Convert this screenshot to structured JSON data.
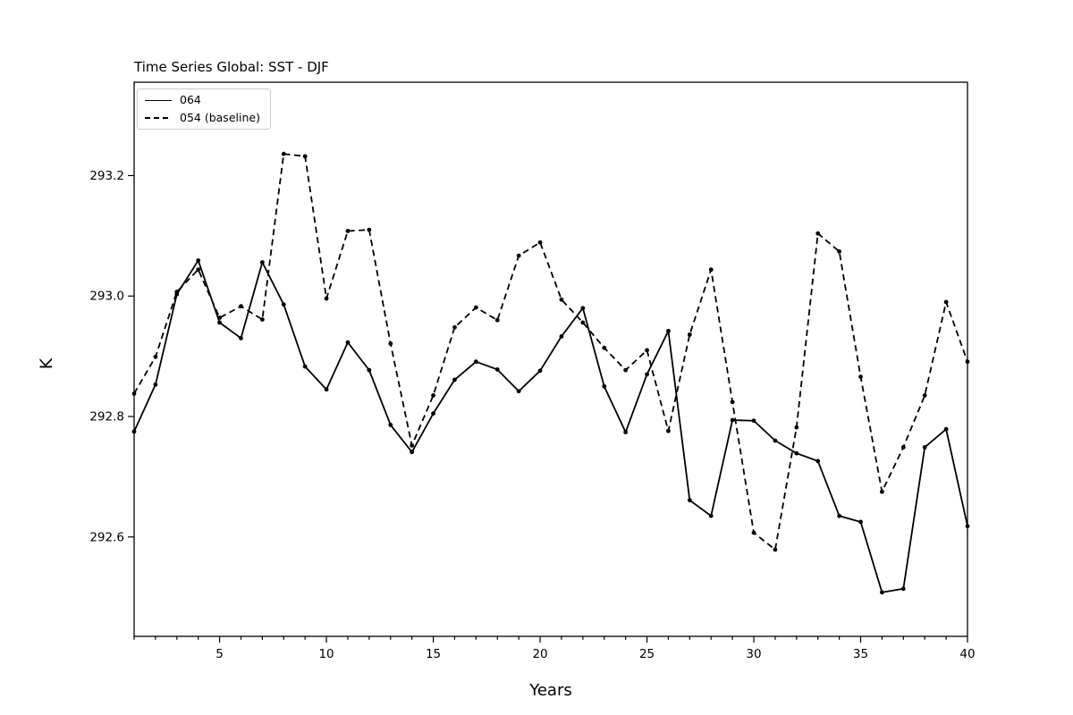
{
  "title": "Time Series Global: SST - DJF",
  "xlabel": "Years",
  "ylabel": "K",
  "legend": {
    "entries": [
      {
        "label": "064",
        "style": "solid"
      },
      {
        "label": "054 (baseline)",
        "style": "dashed"
      }
    ]
  },
  "colors": {
    "line": "#000000",
    "legend_border": "#cccccc",
    "background": "#ffffff"
  },
  "chart_data": {
    "type": "line",
    "title": "Time Series Global: SST - DJF",
    "xlabel": "Years",
    "ylabel": "K",
    "x": [
      1,
      2,
      3,
      4,
      5,
      6,
      7,
      8,
      9,
      10,
      11,
      12,
      13,
      14,
      15,
      16,
      17,
      18,
      19,
      20,
      21,
      22,
      23,
      24,
      25,
      26,
      27,
      28,
      29,
      30,
      31,
      32,
      33,
      34,
      35,
      36,
      37,
      38,
      39,
      40
    ],
    "series": [
      {
        "name": "064",
        "linestyle": "solid",
        "marker": "point",
        "values": [
          292.775,
          292.853,
          293.003,
          293.059,
          292.956,
          292.93,
          293.056,
          292.986,
          292.883,
          292.845,
          292.923,
          292.877,
          292.786,
          292.741,
          292.805,
          292.861,
          292.891,
          292.878,
          292.842,
          292.876,
          292.933,
          292.98,
          292.85,
          292.774,
          292.87,
          292.942,
          292.661,
          292.635,
          292.794,
          292.793,
          292.76,
          292.739,
          292.726,
          292.635,
          292.625,
          292.508,
          292.514,
          292.749,
          292.779,
          292.618
        ]
      },
      {
        "name": "054 (baseline)",
        "linestyle": "dashed",
        "marker": "point",
        "values": [
          292.838,
          292.899,
          293.007,
          293.044,
          292.964,
          292.983,
          292.961,
          293.236,
          293.232,
          292.996,
          293.108,
          293.11,
          292.921,
          292.752,
          292.835,
          292.948,
          292.981,
          292.96,
          293.067,
          293.089,
          292.994,
          292.956,
          292.914,
          292.877,
          292.91,
          292.776,
          292.936,
          293.044,
          292.824,
          292.607,
          292.579,
          292.782,
          293.104,
          293.074,
          292.866,
          292.675,
          292.749,
          292.835,
          292.99,
          292.891
        ]
      }
    ],
    "x_ticks_major": [
      5,
      10,
      15,
      20,
      25,
      30,
      35,
      40
    ],
    "x_minor_step": 1,
    "y_ticks": [
      292.6,
      292.8,
      293.0,
      293.2
    ],
    "xlim": [
      1,
      40
    ],
    "ylim": [
      292.435,
      293.355
    ],
    "grid": false,
    "legend_position": "upper left"
  }
}
